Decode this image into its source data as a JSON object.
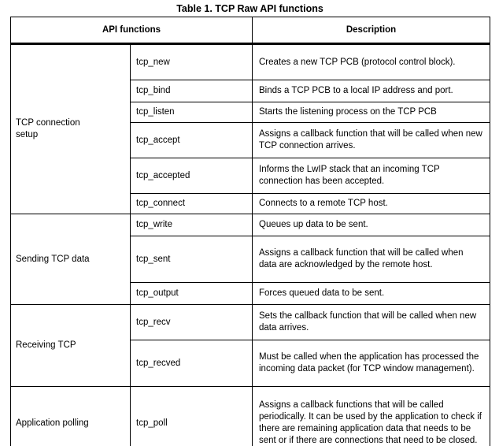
{
  "title": "Table 1. TCP Raw API functions",
  "table": {
    "header": {
      "api_functions": "API functions",
      "description": "Description"
    },
    "groups": [
      {
        "label": "TCP connection setup",
        "rows": [
          {
            "fn": "tcp_new",
            "desc": "Creates a new TCP PCB (protocol control block)."
          },
          {
            "fn": "tcp_bind",
            "desc": "Binds a TCP PCB to a local IP address and port."
          },
          {
            "fn": "tcp_listen",
            "desc": "Starts the listening process on the TCP PCB"
          },
          {
            "fn": "tcp_accept",
            "desc": "Assigns a callback function that will be called when new TCP connection arrives."
          },
          {
            "fn": "tcp_accepted",
            "desc": "Informs the LwIP stack that an incoming TCP connection has been accepted."
          },
          {
            "fn": "tcp_connect",
            "desc": "Connects to a remote TCP host."
          }
        ]
      },
      {
        "label": "Sending TCP data",
        "rows": [
          {
            "fn": "tcp_write",
            "desc": "Queues up data to be sent."
          },
          {
            "fn": "tcp_sent",
            "desc": "Assigns a callback function that will be called when data are acknowledged by the remote host."
          },
          {
            "fn": "tcp_output",
            "desc": "Forces queued data to be sent."
          }
        ]
      },
      {
        "label": "Receiving TCP",
        "rows": [
          {
            "fn": "tcp_recv",
            "desc": "Sets the callback function that will be called when new data arrives."
          },
          {
            "fn": "tcp_recved",
            "desc": "Must be called when the application has processed the incoming data packet (for TCP window management)."
          }
        ]
      },
      {
        "label": "Application polling",
        "rows": [
          {
            "fn": "tcp_poll",
            "desc": "Assigns a callback functions that will be called periodically. It can be used by the application to check if there are remaining application data that needs to be sent or if there are connections that need to be closed."
          }
        ]
      }
    ]
  }
}
